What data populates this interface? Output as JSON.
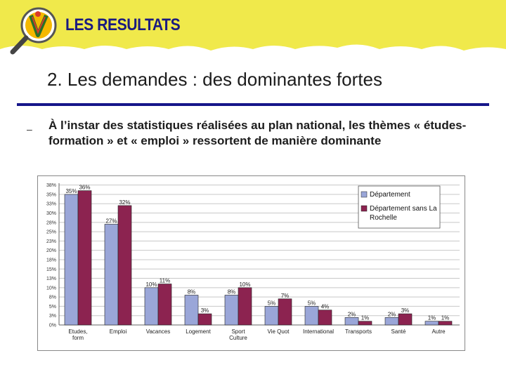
{
  "header": {
    "section_title": "LES RESULTATS"
  },
  "slide": {
    "heading": "2. Les demandes : des dominantes fortes",
    "bullet_marker": "–",
    "bullet_text": "À l’instar des statistiques réalisées au plan national, les thèmes « études-formation » et « emploi » ressortent de manière dominante"
  },
  "colors": {
    "banner": "#f0e94b",
    "rule": "#16168a",
    "series1": "#9aa6d8",
    "series2": "#8c2350"
  },
  "chart_data": {
    "type": "bar",
    "title": "",
    "xlabel": "",
    "ylabel": "",
    "ylim": [
      0,
      38
    ],
    "yticks": [
      "0%",
      "3%",
      "5%",
      "8%",
      "10%",
      "13%",
      "15%",
      "18%",
      "20%",
      "23%",
      "25%",
      "28%",
      "30%",
      "33%",
      "35%",
      "38%"
    ],
    "ytick_values": [
      0,
      2.5,
      5,
      7.5,
      10,
      12.5,
      15,
      17.5,
      20,
      22.5,
      25,
      27.5,
      30,
      32.5,
      35,
      37.5
    ],
    "categories": [
      "Etudes,\nform",
      "Emploi",
      "Vacances",
      "Logement",
      "Sport\nCulture",
      "Vie Quot",
      "International",
      "Transports",
      "Santé",
      "Autre"
    ],
    "series": [
      {
        "name": "Département",
        "values": [
          35,
          27,
          10,
          8,
          8,
          5,
          5,
          2,
          2,
          1
        ],
        "labels": [
          "35%",
          "27%",
          "10%",
          "8%",
          "8%",
          "5%",
          "5%",
          "2%",
          "2%",
          "1%"
        ]
      },
      {
        "name": "Département sans La Rochelle",
        "values": [
          36,
          32,
          11,
          3,
          10,
          7,
          4,
          1,
          3,
          1
        ],
        "labels": [
          "36%",
          "32%",
          "11%",
          "3%",
          "10%",
          "7%",
          "4%",
          "1%",
          "3%",
          "1%"
        ]
      }
    ],
    "legend_position": "top-right",
    "grid": true
  }
}
